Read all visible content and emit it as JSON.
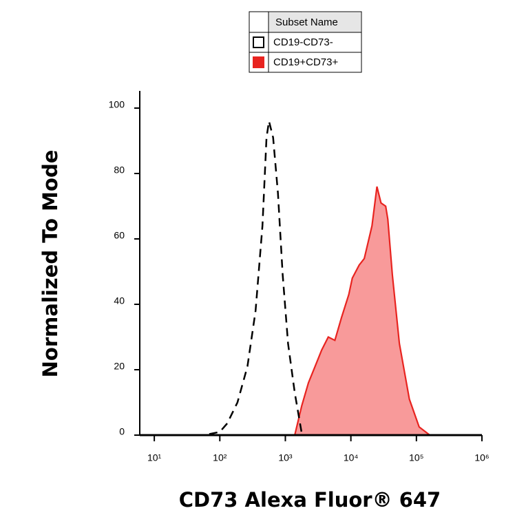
{
  "chart_data": {
    "type": "histogram-overlay",
    "legend_title": "Subset Name",
    "x_label": "CD73 Alexa Fluor® 647",
    "y_label": "Normalized To Mode",
    "x_scale": "log",
    "xlim": [
      6,
      1000000
    ],
    "xticks": [
      {
        "value": 10,
        "label": "10¹"
      },
      {
        "value": 100,
        "label": "10²"
      },
      {
        "value": 1000,
        "label": "10³"
      },
      {
        "value": 10000,
        "label": "10⁴"
      },
      {
        "value": 100000,
        "label": "10⁵"
      },
      {
        "value": 1000000,
        "label": "10⁶"
      }
    ],
    "ylim": [
      0,
      100
    ],
    "yticks": [
      0,
      20,
      40,
      60,
      80,
      100
    ],
    "series": [
      {
        "name": "CD19-CD73-",
        "style": "dashed",
        "color": "#000000",
        "x": [
          10,
          58,
          100,
          130,
          186,
          264,
          351,
          447,
          516,
          563,
          650,
          770,
          910,
          1100,
          1390,
          1780
        ],
        "values": [
          0,
          0,
          1,
          3.6,
          10,
          21,
          38,
          64,
          91,
          96,
          91,
          74,
          49,
          28,
          13,
          0.5
        ]
      },
      {
        "name": "CD19+CD73+",
        "style": "filled",
        "color": "#e8231f",
        "fill": "#f89a9a",
        "x": [
          6,
          1390,
          1780,
          2250,
          2840,
          3580,
          4520,
          5700,
          7200,
          9300,
          10500,
          13400,
          16000,
          21000,
          25000,
          28800,
          34000,
          36600,
          43000,
          55000,
          78000,
          110000,
          160000,
          1000000
        ],
        "values": [
          0,
          0,
          9,
          16,
          21,
          26,
          30,
          29,
          36,
          43,
          48,
          52,
          54,
          64,
          76,
          71,
          70,
          66,
          49,
          28,
          11,
          2.5,
          0,
          0
        ]
      }
    ]
  }
}
